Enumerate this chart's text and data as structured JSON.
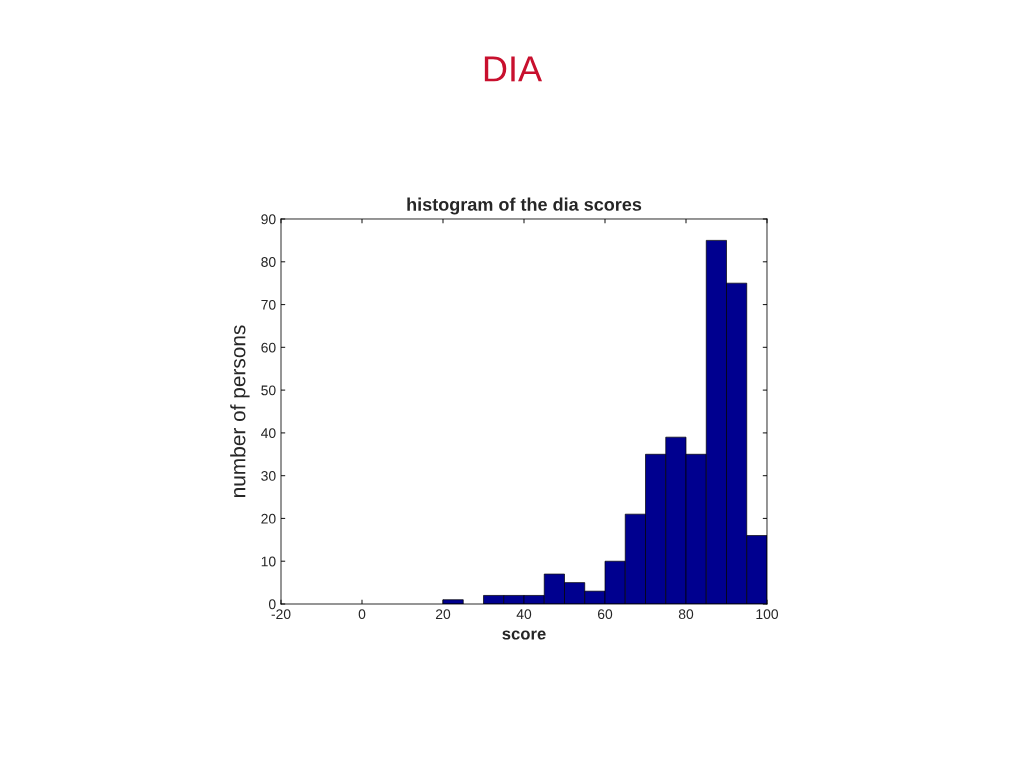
{
  "chart_data": {
    "type": "histogram",
    "title": "DIA",
    "subtitle": "histogram of the dia scores",
    "xlabel": "score",
    "ylabel": "number of persons",
    "bins": [
      20,
      25,
      30,
      35,
      40,
      45,
      50,
      55,
      60,
      65,
      70,
      75,
      80,
      85,
      90,
      95,
      100
    ],
    "values": [
      1,
      0,
      2,
      2,
      2,
      7,
      5,
      3,
      10,
      21,
      35,
      39,
      35,
      85,
      75,
      16
    ],
    "color": "#00008f",
    "xlim": [
      -20,
      100
    ],
    "xticks": [
      -20,
      0,
      20,
      40,
      60,
      80,
      100
    ],
    "ylim": [
      0,
      90
    ],
    "yticks": [
      0,
      10,
      20,
      30,
      40,
      50,
      60,
      70,
      80,
      90
    ],
    "grid": false
  }
}
